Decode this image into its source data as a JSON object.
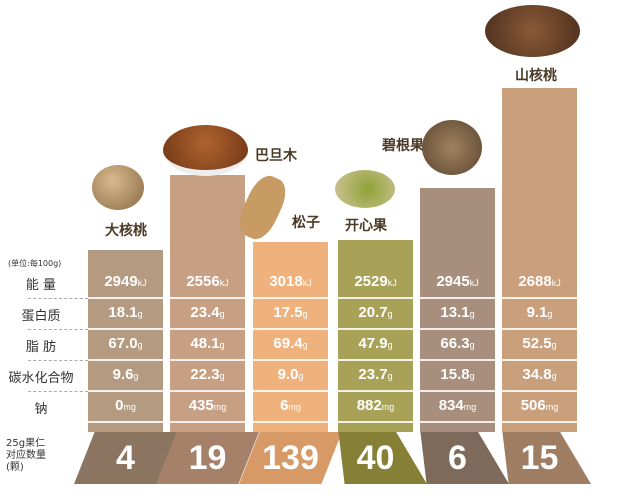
{
  "unit_note": "(单位:每100g)",
  "rows": [
    "能  量",
    "蛋白质",
    "脂  肪",
    "碳水化合物",
    "钠"
  ],
  "count_label": [
    "25g果仁",
    "对应数量",
    "(颗)"
  ],
  "chart_data": {
    "type": "table",
    "categories": [
      "大核桃",
      "巴旦木",
      "松子",
      "开心果",
      "碧根果",
      "山核桃"
    ],
    "colors": [
      "#b39a80",
      "#c7a084",
      "#f0b27c",
      "#a8a258",
      "#a88f7d",
      "#c99f7c"
    ],
    "foot_colors": [
      "#8b7560",
      "#a5816a",
      "#d79a66",
      "#858035",
      "#7e6a5a",
      "#9e7d62"
    ],
    "series": [
      {
        "name": "能  量",
        "unit": "kJ",
        "values": [
          "2949",
          "2556",
          "3018",
          "2529",
          "2945",
          "2688"
        ]
      },
      {
        "name": "蛋白质",
        "unit": "g",
        "values": [
          "18.1",
          "23.4",
          "17.5",
          "20.7",
          "13.1",
          "9.1"
        ]
      },
      {
        "name": "脂  肪",
        "unit": "g",
        "values": [
          "67.0",
          "48.1",
          "69.4",
          "47.9",
          "66.3",
          "52.5"
        ]
      },
      {
        "name": "碳水化合物",
        "unit": "g",
        "values": [
          "9.6",
          "22.3",
          "9.0",
          "23.7",
          "15.8",
          "34.8"
        ]
      },
      {
        "name": "钠",
        "unit": "mg",
        "values": [
          "0",
          "435",
          "6",
          "882",
          "834",
          "506"
        ]
      }
    ],
    "counts": [
      "4",
      "19",
      "139",
      "40",
      "6",
      "15"
    ]
  }
}
